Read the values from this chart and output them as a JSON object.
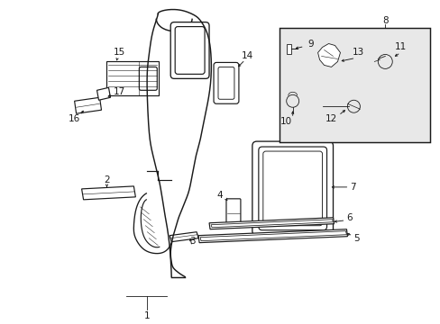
{
  "bg_color": "#ffffff",
  "lc": "#1a1a1a",
  "figsize": [
    4.89,
    3.6
  ],
  "dpi": 100,
  "inset_bg": "#e8e8e8",
  "lw": 0.85
}
